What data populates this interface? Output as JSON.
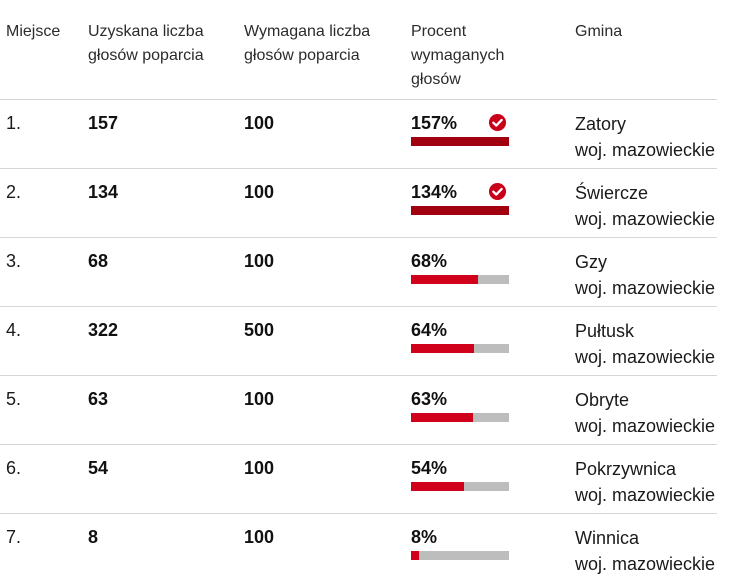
{
  "headers": {
    "place": "Miejsce",
    "got": [
      "Uzyskana liczba",
      "głosów poparcia"
    ],
    "required": [
      "Wymagana liczba",
      "głosów poparcia"
    ],
    "percent": [
      "Procent",
      "wymaganych",
      "głosów"
    ],
    "gmina": "Gmina"
  },
  "colors": {
    "bar_fill": "#d0021b",
    "bar_fill_complete": "#a00010",
    "bar_track": "#bdbdbd",
    "check_icon": "#c8001a"
  },
  "rows": [
    {
      "place": "1.",
      "got": "157",
      "required": "100",
      "percent": "157%",
      "fill": 1.0,
      "complete": true,
      "gmina": "Zatory",
      "voivodeship": "woj. mazowieckie"
    },
    {
      "place": "2.",
      "got": "134",
      "required": "100",
      "percent": "134%",
      "fill": 1.0,
      "complete": true,
      "gmina": "Świercze",
      "voivodeship": "woj. mazowieckie"
    },
    {
      "place": "3.",
      "got": "68",
      "required": "100",
      "percent": "68%",
      "fill": 0.68,
      "complete": false,
      "gmina": "Gzy",
      "voivodeship": "woj. mazowieckie"
    },
    {
      "place": "4.",
      "got": "322",
      "required": "500",
      "percent": "64%",
      "fill": 0.64,
      "complete": false,
      "gmina": "Pułtusk",
      "voivodeship": "woj. mazowieckie"
    },
    {
      "place": "5.",
      "got": "63",
      "required": "100",
      "percent": "63%",
      "fill": 0.63,
      "complete": false,
      "gmina": "Obryte",
      "voivodeship": "woj. mazowieckie"
    },
    {
      "place": "6.",
      "got": "54",
      "required": "100",
      "percent": "54%",
      "fill": 0.54,
      "complete": false,
      "gmina": "Pokrzywnica",
      "voivodeship": "woj. mazowieckie"
    },
    {
      "place": "7.",
      "got": "8",
      "required": "100",
      "percent": "8%",
      "fill": 0.08,
      "complete": false,
      "gmina": "Winnica",
      "voivodeship": "woj. mazowieckie"
    }
  ]
}
